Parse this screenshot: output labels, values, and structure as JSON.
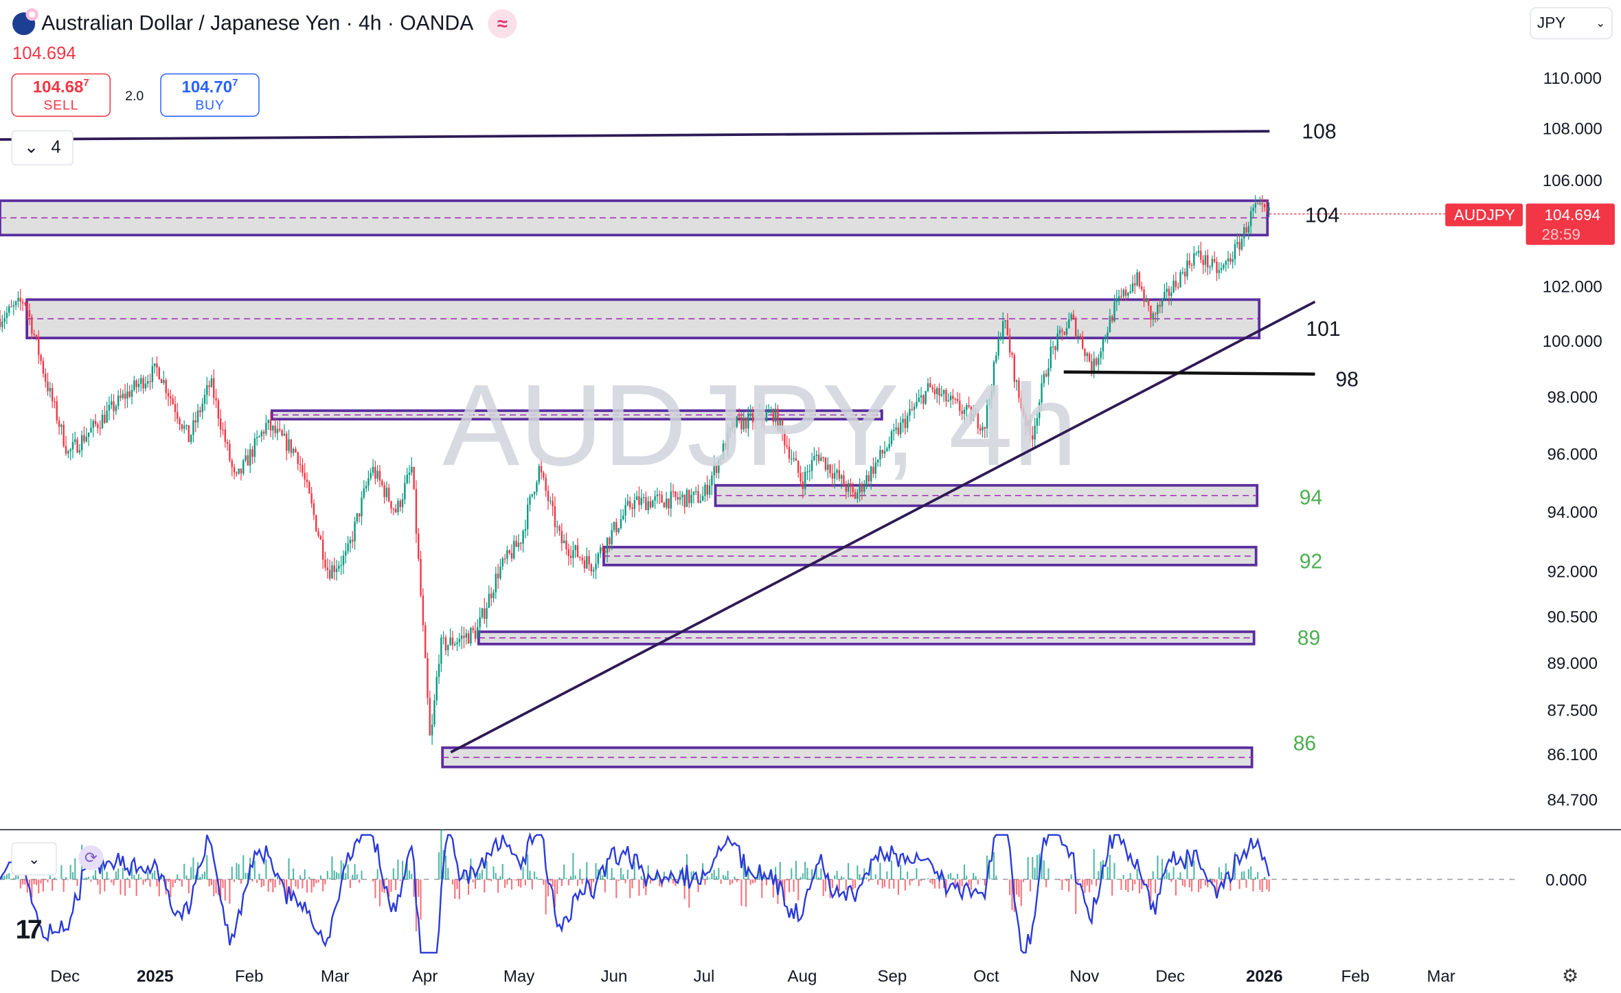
{
  "header": {
    "title": "Australian Dollar / Japanese Yen · 4h · OANDA",
    "last_price": "104.694",
    "sell": {
      "price": "104.68",
      "pip": "7",
      "label": "SELL"
    },
    "spread": "2.0",
    "buy": {
      "price": "104.70",
      "pip": "7",
      "label": "BUY"
    },
    "drawings_count": "4"
  },
  "currency_select": "JPY",
  "watermark": "AUDJPY, 4h",
  "price_axis": [
    "110.000",
    "108.000",
    "106.000",
    "102.000",
    "100.000",
    "98.000",
    "96.000",
    "94.000",
    "92.000",
    "90.500",
    "89.000",
    "87.500",
    "86.100",
    "84.700"
  ],
  "price_tag": {
    "symbol": "AUDJPY",
    "price": "104.694",
    "countdown": "28:59"
  },
  "time_axis": [
    "Dec",
    "2025",
    "Feb",
    "Mar",
    "Apr",
    "May",
    "Jun",
    "Jul",
    "Aug",
    "Sep",
    "Oct",
    "Nov",
    "Dec",
    "2026",
    "Feb",
    "Mar"
  ],
  "indicator": {
    "zero_label": "0.000"
  },
  "level_labels": [
    {
      "text": "108",
      "color": "#131722"
    },
    {
      "text": "104",
      "color": "#131722"
    },
    {
      "text": "101",
      "color": "#131722"
    },
    {
      "text": "98",
      "color": "#131722"
    },
    {
      "text": "94",
      "color": "#4caf50"
    },
    {
      "text": "92",
      "color": "#4caf50"
    },
    {
      "text": "89",
      "color": "#4caf50"
    },
    {
      "text": "86",
      "color": "#4caf50"
    }
  ],
  "colors": {
    "up": "#089981",
    "down": "#f23645",
    "zone_border": "#5b2d9e",
    "zone_fill": "#d9d9db",
    "trendline": "#2e1a55",
    "oscillator": "#2a3ad8"
  },
  "chart_data": {
    "type": "candlestick",
    "symbol": "AUDJPY",
    "timeframe": "4h",
    "y_scale": "log",
    "ylim": [
      84.7,
      110
    ],
    "price_path": [
      [
        "2024-11-20",
        100.8
      ],
      [
        "2024-11-28",
        101.5
      ],
      [
        "2024-12-05",
        98.5
      ],
      [
        "2024-12-12",
        96
      ],
      [
        "2024-12-30",
        98
      ],
      [
        "2025-01-10",
        99
      ],
      [
        "2025-01-20",
        96.5
      ],
      [
        "2025-01-27",
        98.5
      ],
      [
        "2025-02-04",
        95
      ],
      [
        "2025-02-14",
        97
      ],
      [
        "2025-02-24",
        96
      ],
      [
        "2025-03-06",
        92
      ],
      [
        "2025-03-12",
        92.5
      ],
      [
        "2025-03-20",
        95.5
      ],
      [
        "2025-03-28",
        94
      ],
      [
        "2025-04-02",
        95.5
      ],
      [
        "2025-04-05",
        91
      ],
      [
        "2025-04-08",
        86.3
      ],
      [
        "2025-04-11",
        89.5
      ],
      [
        "2025-04-23",
        90
      ],
      [
        "2025-04-30",
        92
      ],
      [
        "2025-05-07",
        93
      ],
      [
        "2025-05-13",
        95.5
      ],
      [
        "2025-05-20",
        93
      ],
      [
        "2025-05-30",
        92.2
      ],
      [
        "2025-06-12",
        94.3
      ],
      [
        "2025-07-05",
        94.5
      ],
      [
        "2025-07-15",
        97
      ],
      [
        "2025-07-28",
        97.4
      ],
      [
        "2025-08-06",
        95
      ],
      [
        "2025-08-11",
        96
      ],
      [
        "2025-08-23",
        94.5
      ],
      [
        "2025-09-04",
        96.5
      ],
      [
        "2025-09-16",
        98.3
      ],
      [
        "2025-10-04",
        97
      ],
      [
        "2025-10-10",
        100.9
      ],
      [
        "2025-10-15",
        98
      ],
      [
        "2025-10-19",
        96.5
      ],
      [
        "2025-10-25",
        99.5
      ],
      [
        "2025-11-01",
        100.8
      ],
      [
        "2025-11-08",
        99
      ],
      [
        "2025-11-15",
        101.2
      ],
      [
        "2025-11-22",
        102.3
      ],
      [
        "2025-11-27",
        100.8
      ],
      [
        "2025-12-11",
        103.2
      ],
      [
        "2025-12-19",
        102.5
      ],
      [
        "2025-12-25",
        103.5
      ],
      [
        "2025-12-30",
        104.9
      ],
      [
        "2026-01-04",
        104.694
      ]
    ],
    "zones": [
      [
        103.9,
        105.2
      ],
      [
        100.1,
        101.5
      ],
      [
        97.2,
        97.5
      ],
      [
        94.2,
        94.9
      ],
      [
        92.2,
        92.8
      ],
      [
        89.6,
        90.0
      ],
      [
        85.7,
        86.3
      ]
    ],
    "horizontal_lines": [
      108,
      98.8
    ],
    "trendline": [
      [
        "2025-04-08",
        86.1
      ],
      [
        "2026-01-07",
        101.7
      ]
    ]
  }
}
